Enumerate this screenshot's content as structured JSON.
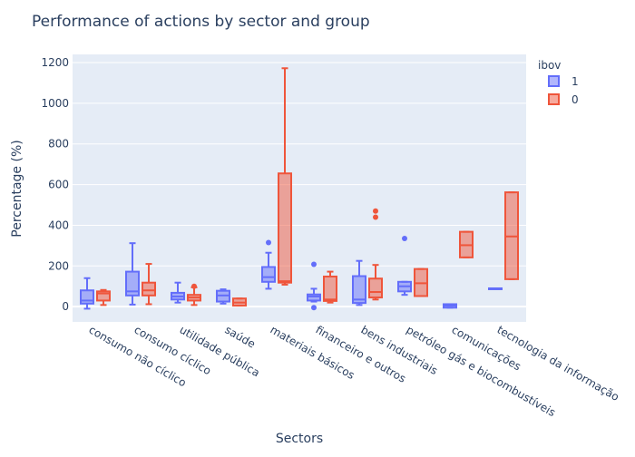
{
  "chart_data": {
    "type": "box",
    "title": "Performance of actions by sector and group",
    "xlabel": "Sectors",
    "ylabel": "Percentage (%)",
    "ylim": [
      -75,
      1240
    ],
    "yticks": [
      0,
      200,
      400,
      600,
      800,
      1000,
      1200
    ],
    "grid": true,
    "legend": {
      "title": "ibov",
      "position": "top-right"
    },
    "categories": [
      "consumo não cíclico",
      "consumo cíclico",
      "utilidade pública",
      "saúde",
      "materiais básicos",
      "financeiro e outros",
      "bens industriais",
      "petróleo gás e biocombustíveis",
      "comunicações",
      "tecnologia da informação"
    ],
    "series": [
      {
        "name": "1",
        "color": "#636efa",
        "boxes": [
          {
            "category": "consumo não cíclico",
            "min": -10,
            "q1": 15,
            "median": 30,
            "q3": 80,
            "max": 140,
            "outliers": []
          },
          {
            "category": "consumo cíclico",
            "min": 10,
            "q1": 55,
            "median": 75,
            "q3": 172,
            "max": 312,
            "outliers": []
          },
          {
            "category": "utilidade pública",
            "min": 20,
            "q1": 35,
            "median": 50,
            "q3": 68,
            "max": 118,
            "outliers": []
          },
          {
            "category": "saúde",
            "min": 15,
            "q1": 25,
            "median": 55,
            "q3": 78,
            "max": 85,
            "outliers": []
          },
          {
            "category": "materiais básicos",
            "min": 88,
            "q1": 122,
            "median": 145,
            "q3": 195,
            "max": 265,
            "outliers": [
              315
            ]
          },
          {
            "category": "financeiro e outros",
            "min": 25,
            "q1": 30,
            "median": 50,
            "q3": 60,
            "max": 88,
            "outliers": [
              208,
              -5
            ]
          },
          {
            "category": "bens industriais",
            "min": 8,
            "q1": 18,
            "median": 35,
            "q3": 150,
            "max": 225,
            "outliers": []
          },
          {
            "category": "petróleo gás e biocombustíveis",
            "min": 58,
            "q1": 75,
            "median": 100,
            "q3": 122,
            "max": 122,
            "outliers": [
              335
            ]
          },
          {
            "category": "comunicações",
            "min": -5,
            "q1": -5,
            "median": 5,
            "q3": 12,
            "max": 12,
            "outliers": []
          },
          {
            "category": "tecnologia da informação",
            "min": 90,
            "q1": 90,
            "median": 90,
            "q3": 90,
            "max": 90,
            "outliers": []
          }
        ]
      },
      {
        "name": "0",
        "color": "#ef553b",
        "boxes": [
          {
            "category": "consumo não cíclico",
            "min": 8,
            "q1": 30,
            "median": 65,
            "q3": 75,
            "max": 82,
            "outliers": []
          },
          {
            "category": "consumo cíclico",
            "min": 12,
            "q1": 55,
            "median": 80,
            "q3": 118,
            "max": 210,
            "outliers": []
          },
          {
            "category": "utilidade pública",
            "min": 8,
            "q1": 30,
            "median": 45,
            "q3": 58,
            "max": 95,
            "outliers": [
              100
            ]
          },
          {
            "category": "saúde",
            "min": 5,
            "q1": 5,
            "median": 20,
            "q3": 40,
            "max": 40,
            "outliers": []
          },
          {
            "category": "materiais básicos",
            "min": 108,
            "q1": 118,
            "median": 125,
            "q3": 655,
            "max": 1172,
            "outliers": []
          },
          {
            "category": "financeiro e outros",
            "min": 20,
            "q1": 28,
            "median": 35,
            "q3": 148,
            "max": 172,
            "outliers": []
          },
          {
            "category": "bens industriais",
            "min": 35,
            "q1": 45,
            "median": 72,
            "q3": 138,
            "max": 205,
            "outliers": [
              440,
              470
            ]
          },
          {
            "category": "petróleo gás e biocombustíveis",
            "min": 52,
            "q1": 52,
            "median": 115,
            "q3": 185,
            "max": 185,
            "outliers": []
          },
          {
            "category": "comunicações",
            "min": 242,
            "q1": 242,
            "median": 302,
            "q3": 368,
            "max": 368,
            "outliers": []
          },
          {
            "category": "tecnologia da informação",
            "min": 135,
            "q1": 135,
            "median": 345,
            "q3": 562,
            "max": 562,
            "outliers": []
          }
        ]
      }
    ]
  }
}
